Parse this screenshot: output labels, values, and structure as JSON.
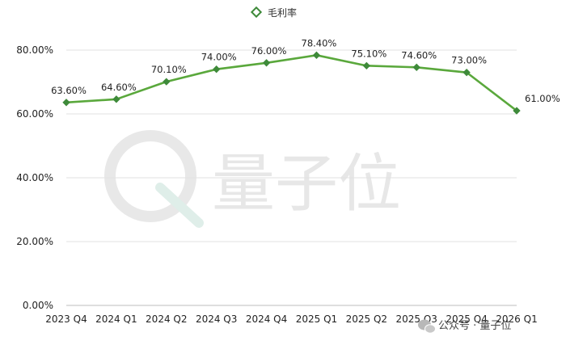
{
  "chart_data": {
    "type": "line",
    "title": "",
    "xlabel": "",
    "ylabel": "",
    "ylim": [
      0,
      80
    ],
    "yticks": [
      "0.00%",
      "20.00%",
      "40.00%",
      "60.00%",
      "80.00%"
    ],
    "ytick_values": [
      0,
      20,
      40,
      60,
      80
    ],
    "grid": true,
    "legend_position": "top-center",
    "categories": [
      "2023 Q4",
      "2024 Q1",
      "2024 Q2",
      "2024 Q3",
      "2024 Q4",
      "2025 Q1",
      "2025 Q2",
      "2025 Q3",
      "2025 Q4",
      "2026 Q1"
    ],
    "series": [
      {
        "name": "毛利率",
        "color": "#5aa83c",
        "marker_color": "#3e8a3a",
        "values": [
          63.6,
          64.6,
          70.1,
          74.0,
          76.0,
          78.4,
          75.1,
          74.6,
          73.0,
          61.0
        ],
        "labels": [
          "63.60%",
          "64.60%",
          "70.10%",
          "74.00%",
          "76.00%",
          "78.40%",
          "75.10%",
          "74.60%",
          "73.00%",
          "61.00%"
        ]
      }
    ]
  },
  "watermark": {
    "text": "量子位",
    "icon": "quantumbit-logo-icon"
  },
  "footer": {
    "text": "公众号 · 量子位",
    "icon": "wechat-icon"
  }
}
